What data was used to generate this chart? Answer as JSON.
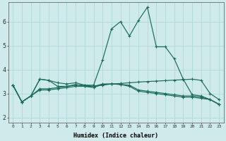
{
  "xlabel": "Humidex (Indice chaleur)",
  "ylim": [
    1.8,
    6.8
  ],
  "xlim": [
    -0.5,
    23.5
  ],
  "y_ticks": [
    2,
    3,
    4,
    5,
    6
  ],
  "x_ticks": [
    0,
    1,
    2,
    3,
    4,
    5,
    6,
    7,
    8,
    9,
    10,
    11,
    12,
    13,
    14,
    15,
    16,
    17,
    18,
    19,
    20,
    21,
    22,
    23
  ],
  "line_color": "#1a6b5a",
  "bg_color": "#ceeaea",
  "grid_color": "#aad4d4",
  "line1_x": [
    0,
    1,
    2,
    3,
    4,
    5,
    6,
    7,
    8,
    9,
    10,
    11,
    12,
    13,
    14,
    15,
    16,
    17,
    18,
    19,
    20,
    21,
    22,
    23
  ],
  "line1_y": [
    3.35,
    2.65,
    2.9,
    3.6,
    3.55,
    3.45,
    3.4,
    3.45,
    3.35,
    3.35,
    4.4,
    5.7,
    6.0,
    5.4,
    6.05,
    6.6,
    4.95,
    4.95,
    4.45,
    3.6,
    2.95,
    2.9,
    2.75,
    2.55
  ],
  "line2_x": [
    0,
    1,
    2,
    3,
    4,
    5,
    6,
    7,
    8,
    9,
    10,
    11,
    12,
    13,
    14,
    15,
    16,
    17,
    18,
    19,
    20,
    21,
    22,
    23
  ],
  "line2_y": [
    3.35,
    2.65,
    2.9,
    3.15,
    3.15,
    3.2,
    3.25,
    3.3,
    3.3,
    3.3,
    3.35,
    3.4,
    3.42,
    3.45,
    3.48,
    3.5,
    3.52,
    3.54,
    3.56,
    3.58,
    3.6,
    3.55,
    3.0,
    2.75
  ],
  "line3_x": [
    0,
    1,
    2,
    3,
    4,
    5,
    6,
    7,
    8,
    9,
    10,
    11,
    12,
    13,
    14,
    15,
    16,
    17,
    18,
    19,
    20,
    21,
    22,
    23
  ],
  "line3_y": [
    3.35,
    2.65,
    2.9,
    3.2,
    3.2,
    3.25,
    3.3,
    3.35,
    3.35,
    3.3,
    3.4,
    3.4,
    3.38,
    3.35,
    3.15,
    3.1,
    3.05,
    3.0,
    2.95,
    2.9,
    2.9,
    2.85,
    2.75,
    2.55
  ],
  "line4_x": [
    0,
    1,
    2,
    3,
    4,
    5,
    6,
    7,
    8,
    9,
    10,
    11,
    12,
    13,
    14,
    15,
    16,
    17,
    18,
    19,
    20,
    21,
    22,
    23
  ],
  "line4_y": [
    3.35,
    2.65,
    2.9,
    3.6,
    3.55,
    3.3,
    3.3,
    3.38,
    3.3,
    3.25,
    3.38,
    3.4,
    3.38,
    3.3,
    3.1,
    3.05,
    3.0,
    2.95,
    2.9,
    2.85,
    2.85,
    2.8,
    2.75,
    2.55
  ]
}
